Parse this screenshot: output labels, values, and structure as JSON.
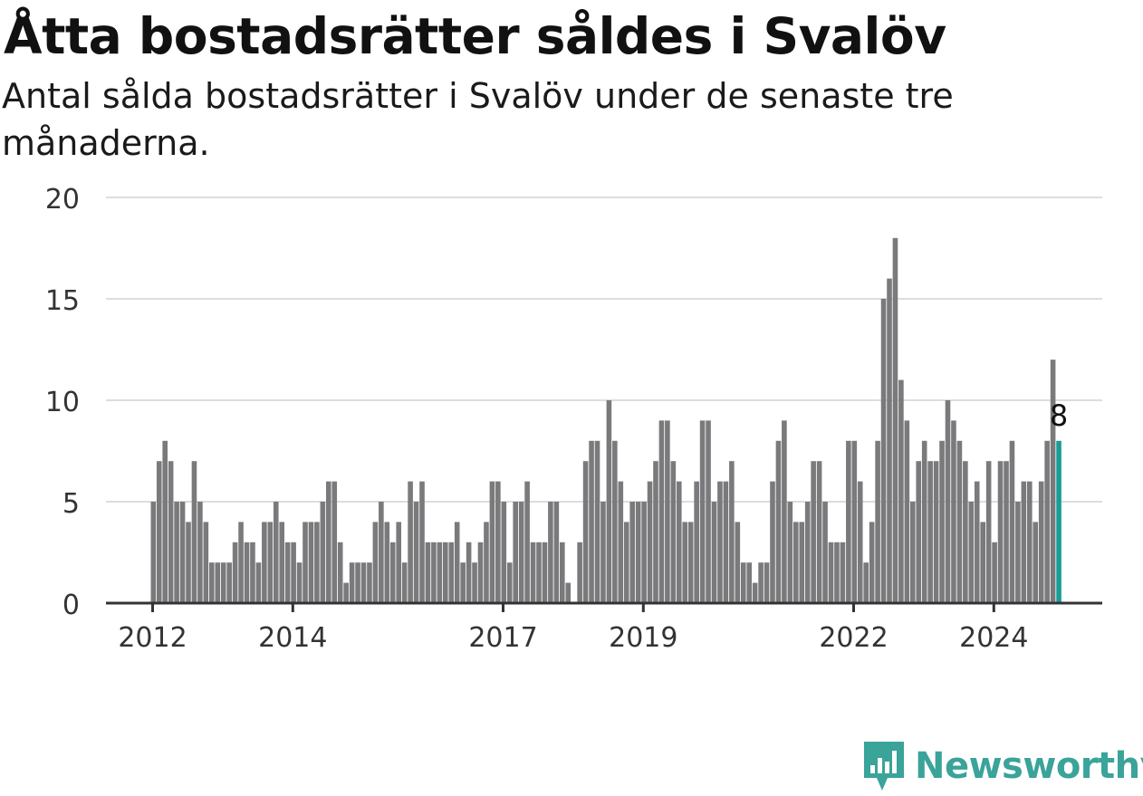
{
  "title": "Åtta bostadsrätter såldes i Svalöv",
  "subtitle": "Antal sålda bostadsrätter i Svalöv under de senaste tre månaderna.",
  "brand": "Newsworthy",
  "colors": {
    "bar": "#7a797c",
    "highlight": "#1a9c95",
    "grid": "#dddddd",
    "axis": "#333333",
    "brand": "#3aa39a"
  },
  "chart_data": {
    "type": "bar",
    "title": "Åtta bostadsrätter såldes i Svalöv",
    "subtitle": "Antal sålda bostadsrätter i Svalöv under de senaste tre månaderna.",
    "xlabel": "",
    "ylabel": "",
    "ylim": [
      0,
      20
    ],
    "yticks": [
      0,
      5,
      10,
      15,
      20
    ],
    "xticks": [
      "2012",
      "2014",
      "2017",
      "2019",
      "2022",
      "2024"
    ],
    "grid": true,
    "start": "2012-01",
    "frequency": "monthly",
    "values": [
      5,
      7,
      8,
      7,
      5,
      5,
      4,
      7,
      5,
      4,
      2,
      2,
      2,
      2,
      3,
      4,
      3,
      3,
      2,
      4,
      4,
      5,
      4,
      3,
      3,
      2,
      4,
      4,
      4,
      5,
      6,
      6,
      3,
      1,
      2,
      2,
      2,
      2,
      4,
      5,
      4,
      3,
      4,
      2,
      6,
      5,
      6,
      3,
      3,
      3,
      3,
      3,
      4,
      2,
      3,
      2,
      3,
      4,
      6,
      6,
      5,
      2,
      5,
      5,
      6,
      3,
      3,
      3,
      5,
      5,
      3,
      1,
      0,
      3,
      7,
      8,
      8,
      5,
      10,
      8,
      6,
      4,
      5,
      5,
      5,
      6,
      7,
      9,
      9,
      7,
      6,
      4,
      4,
      6,
      9,
      9,
      5,
      6,
      6,
      7,
      4,
      2,
      2,
      1,
      2,
      2,
      6,
      8,
      9,
      5,
      4,
      4,
      5,
      7,
      7,
      5,
      3,
      3,
      3,
      8,
      8,
      6,
      2,
      4,
      8,
      15,
      16,
      18,
      11,
      9,
      5,
      7,
      8,
      7,
      7,
      8,
      10,
      9,
      8,
      7,
      5,
      6,
      4,
      7,
      3,
      7,
      7,
      8,
      5,
      6,
      6,
      4,
      6,
      8,
      12,
      8
    ],
    "highlight_index": 155,
    "highlight_label": "8"
  }
}
